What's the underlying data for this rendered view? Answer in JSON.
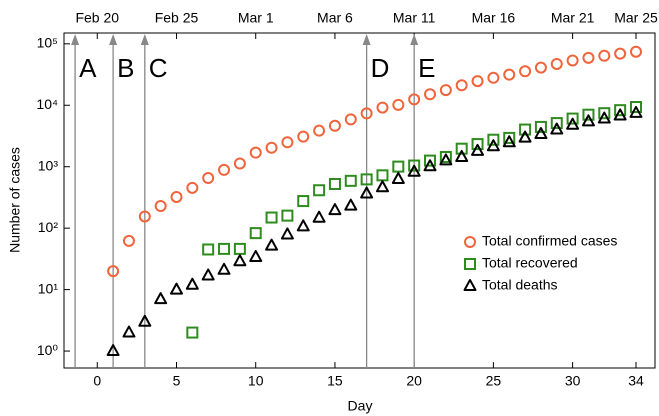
{
  "chart_data": {
    "type": "scatter",
    "xlabel": "Day",
    "ylabel": "Number of cases",
    "xlim": [
      -2.1,
      35.2
    ],
    "ylim": [
      0.53,
      150000
    ],
    "log_y": true,
    "xticks": [
      0,
      5,
      10,
      15,
      20,
      25,
      30,
      34
    ],
    "x2ticks": [
      {
        "value": 0,
        "label": "Feb 20"
      },
      {
        "value": 5,
        "label": "Feb 25"
      },
      {
        "value": 10,
        "label": "Mar 1"
      },
      {
        "value": 15,
        "label": "Mar 6"
      },
      {
        "value": 20,
        "label": "Mar 11"
      },
      {
        "value": 25,
        "label": "Mar 16"
      },
      {
        "value": 30,
        "label": "Mar 21"
      },
      {
        "value": 34,
        "label": "Mar 25"
      }
    ],
    "yticks": [
      {
        "value": 1,
        "label": "10⁰"
      },
      {
        "value": 10,
        "label": "10¹"
      },
      {
        "value": 100,
        "label": "10²"
      },
      {
        "value": 1000,
        "label": "10³"
      },
      {
        "value": 10000,
        "label": "10⁴"
      },
      {
        "value": 100000,
        "label": "10⁵"
      }
    ],
    "annotations": [
      {
        "x": -1.4,
        "text": "A"
      },
      {
        "x": 1,
        "text": "B"
      },
      {
        "x": 3,
        "text": "C"
      },
      {
        "x": 17,
        "text": "D"
      },
      {
        "x": 20,
        "text": "E"
      }
    ],
    "legend": "center-right",
    "series": [
      {
        "name": "Total confirmed cases",
        "color": "#f0643c",
        "marker": "circle",
        "x": [
          1,
          2,
          3,
          4,
          5,
          6,
          7,
          8,
          9,
          10,
          11,
          12,
          13,
          14,
          15,
          16,
          17,
          18,
          19,
          20,
          21,
          22,
          23,
          24,
          25,
          26,
          27,
          28,
          29,
          30,
          31,
          32,
          33,
          34
        ],
        "values": [
          20,
          62,
          155,
          229,
          322,
          453,
          655,
          888,
          1128,
          1694,
          2036,
          2502,
          3089,
          3858,
          4636,
          5883,
          7375,
          9172,
          10149,
          12462,
          15113,
          17660,
          21157,
          24747,
          27980,
          31506,
          35713,
          41035,
          47021,
          53578,
          59138,
          63927,
          69176,
          74386
        ]
      },
      {
        "name": "Total recovered",
        "color": "#2e8b1e",
        "marker": "square",
        "x": [
          6,
          7,
          8,
          9,
          10,
          11,
          12,
          13,
          14,
          15,
          16,
          17,
          18,
          19,
          20,
          21,
          22,
          23,
          24,
          25,
          26,
          27,
          28,
          29,
          30,
          31,
          32,
          33,
          34
        ],
        "values": [
          2,
          45,
          46,
          46,
          83,
          149,
          160,
          276,
          414,
          523,
          589,
          622,
          724,
          1004,
          1045,
          1258,
          1439,
          1966,
          2335,
          2749,
          2941,
          4025,
          4440,
          5129,
          6072,
          7024,
          7432,
          8326,
          9362
        ]
      },
      {
        "name": "Total deaths",
        "color": "#000000",
        "marker": "triangle",
        "x": [
          1,
          2,
          3,
          4,
          5,
          6,
          7,
          8,
          9,
          10,
          11,
          12,
          13,
          14,
          15,
          16,
          17,
          18,
          19,
          20,
          21,
          22,
          23,
          24,
          25,
          26,
          27,
          28,
          29,
          30,
          31,
          32,
          33,
          34
        ],
        "values": [
          1,
          2,
          3,
          7,
          10,
          12,
          17,
          21,
          29,
          34,
          52,
          79,
          107,
          148,
          197,
          233,
          366,
          463,
          631,
          827,
          1016,
          1266,
          1441,
          1809,
          2158,
          2503,
          2978,
          3405,
          4032,
          4825,
          5476,
          6077,
          6820,
          7503
        ]
      }
    ]
  }
}
